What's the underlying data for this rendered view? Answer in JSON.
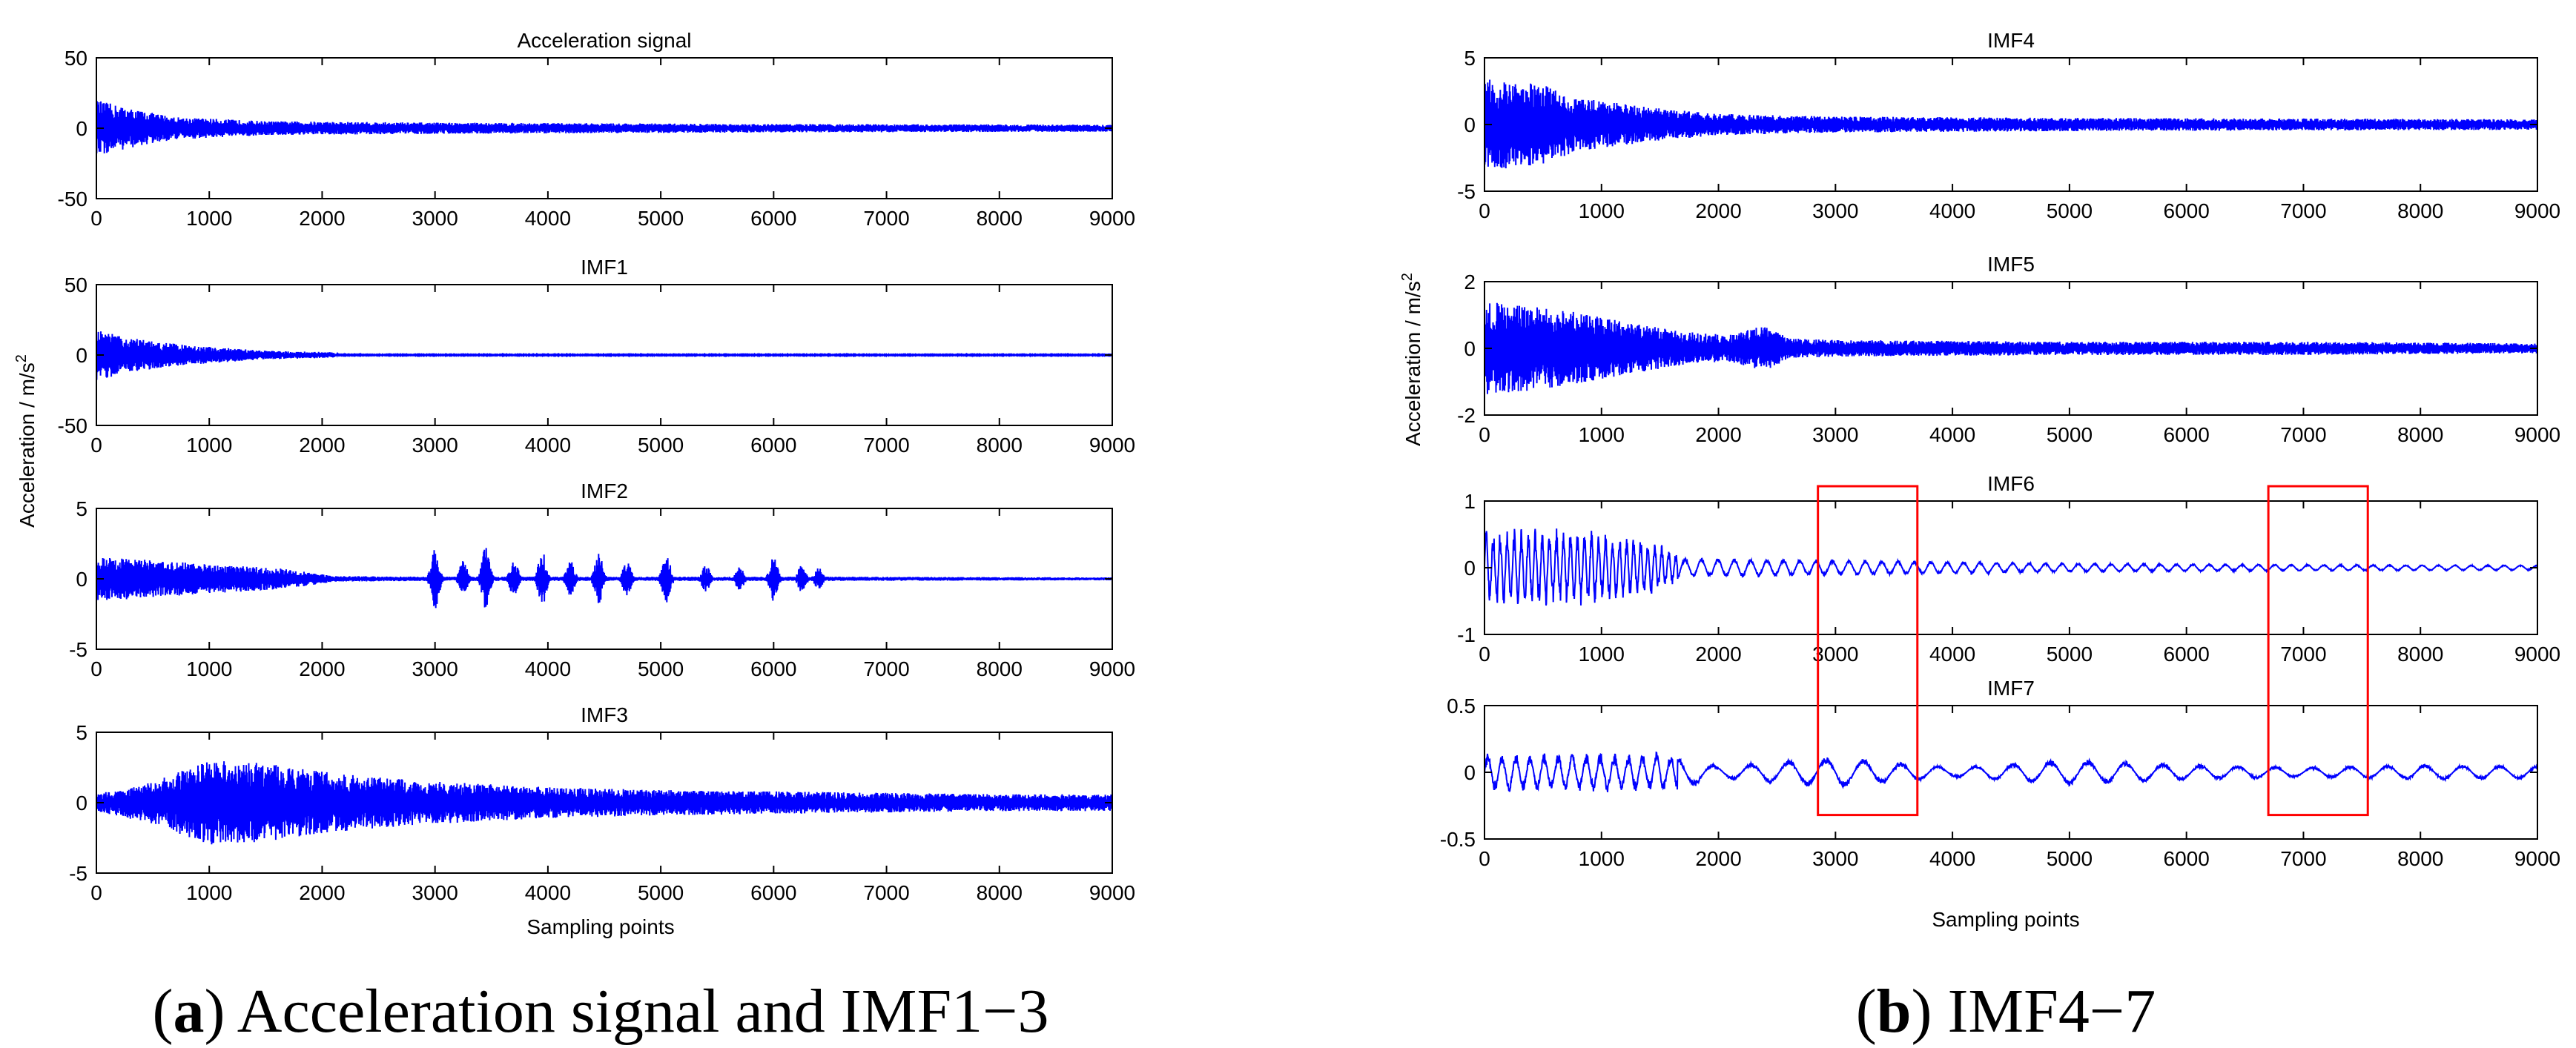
{
  "panels": {
    "a": {
      "caption_letter": "a",
      "caption_text": "Acceleration signal and IMF1−3",
      "ylabel": "Acceleration / m/s",
      "ylabel_sup": "2",
      "xlabel": "Sampling points"
    },
    "b": {
      "caption_letter": "b",
      "caption_text": "IMF4−7",
      "ylabel": "Acceleration / m/s",
      "ylabel_sup": "2",
      "xlabel": "Sampling points"
    }
  },
  "colors": {
    "signal": "#0000ff",
    "highlight": "#ff0000",
    "axes": "#000000"
  },
  "chart_data": [
    {
      "id": "acc",
      "panel": "a",
      "type": "line",
      "title": "Acceleration signal",
      "xlim": [
        0,
        9000
      ],
      "ylim": [
        -50,
        50
      ],
      "xticks": [
        0,
        1000,
        2000,
        3000,
        4000,
        5000,
        6000,
        7000,
        8000,
        9000
      ],
      "yticks": [
        -50,
        0,
        50
      ],
      "envelope": [
        [
          0,
          20
        ],
        [
          300,
          14
        ],
        [
          700,
          8
        ],
        [
          1500,
          5
        ],
        [
          3000,
          4
        ],
        [
          6000,
          3
        ],
        [
          9000,
          2.5
        ]
      ],
      "grid": false
    },
    {
      "id": "imf1",
      "panel": "a",
      "type": "line",
      "title": "IMF1",
      "xlim": [
        0,
        9000
      ],
      "ylim": [
        -50,
        50
      ],
      "xticks": [
        0,
        1000,
        2000,
        3000,
        4000,
        5000,
        6000,
        7000,
        8000,
        9000
      ],
      "yticks": [
        -50,
        0,
        50
      ],
      "envelope": [
        [
          0,
          18
        ],
        [
          300,
          12
        ],
        [
          800,
          7
        ],
        [
          1500,
          3
        ],
        [
          2100,
          2
        ],
        [
          2150,
          0.3
        ],
        [
          9000,
          0.3
        ]
      ],
      "grid": false
    },
    {
      "id": "imf2",
      "panel": "a",
      "type": "line",
      "title": "IMF2",
      "xlim": [
        0,
        9000
      ],
      "ylim": [
        -5,
        5
      ],
      "xticks": [
        0,
        1000,
        2000,
        3000,
        4000,
        5000,
        6000,
        7000,
        8000,
        9000
      ],
      "yticks": [
        -5,
        0,
        5
      ],
      "envelope": [
        [
          0,
          1.6
        ],
        [
          700,
          1.2
        ],
        [
          1700,
          0.7
        ],
        [
          2100,
          0.2
        ],
        [
          2900,
          0.15
        ],
        [
          6500,
          0.15
        ],
        [
          9000,
          0.1
        ]
      ],
      "bursts": [
        [
          3000,
          2.3
        ],
        [
          3250,
          1.3
        ],
        [
          3450,
          2.3
        ],
        [
          3700,
          1.4
        ],
        [
          3950,
          2.0
        ],
        [
          4200,
          1.3
        ],
        [
          4450,
          1.9
        ],
        [
          4700,
          1.3
        ],
        [
          5050,
          1.9
        ],
        [
          5400,
          1.0
        ],
        [
          5700,
          0.9
        ],
        [
          6000,
          1.6
        ],
        [
          6250,
          1.0
        ],
        [
          6400,
          0.8
        ]
      ],
      "grid": false
    },
    {
      "id": "imf3",
      "panel": "a",
      "type": "line",
      "title": "IMF3",
      "xlim": [
        0,
        9000
      ],
      "ylim": [
        -5,
        5
      ],
      "xticks": [
        0,
        1000,
        2000,
        3000,
        4000,
        5000,
        6000,
        7000,
        8000,
        9000
      ],
      "yticks": [
        -5,
        0,
        5
      ],
      "envelope": [
        [
          0,
          0.6
        ],
        [
          500,
          1.5
        ],
        [
          1000,
          3.0
        ],
        [
          1500,
          2.8
        ],
        [
          2000,
          2.2
        ],
        [
          2500,
          1.8
        ],
        [
          3000,
          1.5
        ],
        [
          4000,
          1.1
        ],
        [
          5000,
          0.9
        ],
        [
          6000,
          0.8
        ],
        [
          7000,
          0.7
        ],
        [
          8000,
          0.6
        ],
        [
          9000,
          0.6
        ]
      ],
      "grid": false
    },
    {
      "id": "imf4",
      "panel": "b",
      "type": "line",
      "title": "IMF4",
      "xlim": [
        0,
        9000
      ],
      "ylim": [
        -5,
        5
      ],
      "xticks": [
        0,
        1000,
        2000,
        3000,
        4000,
        5000,
        6000,
        7000,
        8000,
        9000
      ],
      "yticks": [
        -5,
        0,
        5
      ],
      "envelope": [
        [
          0,
          3.5
        ],
        [
          500,
          3.0
        ],
        [
          800,
          2.0
        ],
        [
          1500,
          1.2
        ],
        [
          2000,
          0.8
        ],
        [
          3000,
          0.6
        ],
        [
          5000,
          0.5
        ],
        [
          7000,
          0.45
        ],
        [
          9000,
          0.4
        ]
      ],
      "grid": false
    },
    {
      "id": "imf5",
      "panel": "b",
      "type": "line",
      "title": "IMF5",
      "xlim": [
        0,
        9000
      ],
      "ylim": [
        -2,
        2
      ],
      "xticks": [
        0,
        1000,
        2000,
        3000,
        4000,
        5000,
        6000,
        7000,
        8000,
        9000
      ],
      "yticks": [
        -2,
        0,
        2
      ],
      "envelope": [
        [
          0,
          1.4
        ],
        [
          600,
          1.2
        ],
        [
          1200,
          0.8
        ],
        [
          1700,
          0.5
        ],
        [
          2100,
          0.4
        ],
        [
          2400,
          0.7
        ],
        [
          2600,
          0.3
        ],
        [
          3000,
          0.25
        ],
        [
          5000,
          0.2
        ],
        [
          7000,
          0.2
        ],
        [
          9000,
          0.15
        ]
      ],
      "grid": false
    },
    {
      "id": "imf6",
      "panel": "b",
      "type": "line",
      "title": "IMF6",
      "xlim": [
        0,
        9000
      ],
      "ylim": [
        -1,
        1
      ],
      "xticks": [
        0,
        1000,
        2000,
        3000,
        4000,
        5000,
        6000,
        7000,
        8000,
        9000
      ],
      "yticks": [
        -1,
        0,
        1
      ],
      "envelope": [
        [
          0,
          0.6
        ],
        [
          800,
          0.6
        ],
        [
          1500,
          0.4
        ],
        [
          1700,
          0.15
        ],
        [
          3000,
          0.12
        ],
        [
          5000,
          0.07
        ],
        [
          7000,
          0.05
        ],
        [
          9000,
          0.04
        ]
      ],
      "highlights": [
        [
          2850,
          3700
        ],
        [
          6700,
          7550
        ]
      ],
      "grid": false
    },
    {
      "id": "imf7",
      "panel": "b",
      "type": "line",
      "title": "IMF7",
      "xlim": [
        0,
        9000
      ],
      "ylim": [
        -0.5,
        0.5
      ],
      "xticks": [
        0,
        1000,
        2000,
        3000,
        4000,
        5000,
        6000,
        7000,
        8000,
        9000
      ],
      "yticks": [
        -0.5,
        0,
        0.5
      ],
      "envelope": [
        [
          0,
          0.15
        ],
        [
          1600,
          0.15
        ],
        [
          2000,
          0.05
        ],
        [
          3000,
          0.12
        ],
        [
          4000,
          0.04
        ],
        [
          5000,
          0.1
        ],
        [
          5500,
          0.08
        ],
        [
          6000,
          0.06
        ],
        [
          7000,
          0.04
        ],
        [
          8000,
          0.06
        ],
        [
          9000,
          0.05
        ]
      ],
      "highlights": [
        [
          2850,
          3700
        ],
        [
          6700,
          7550
        ]
      ],
      "grid": false
    }
  ]
}
